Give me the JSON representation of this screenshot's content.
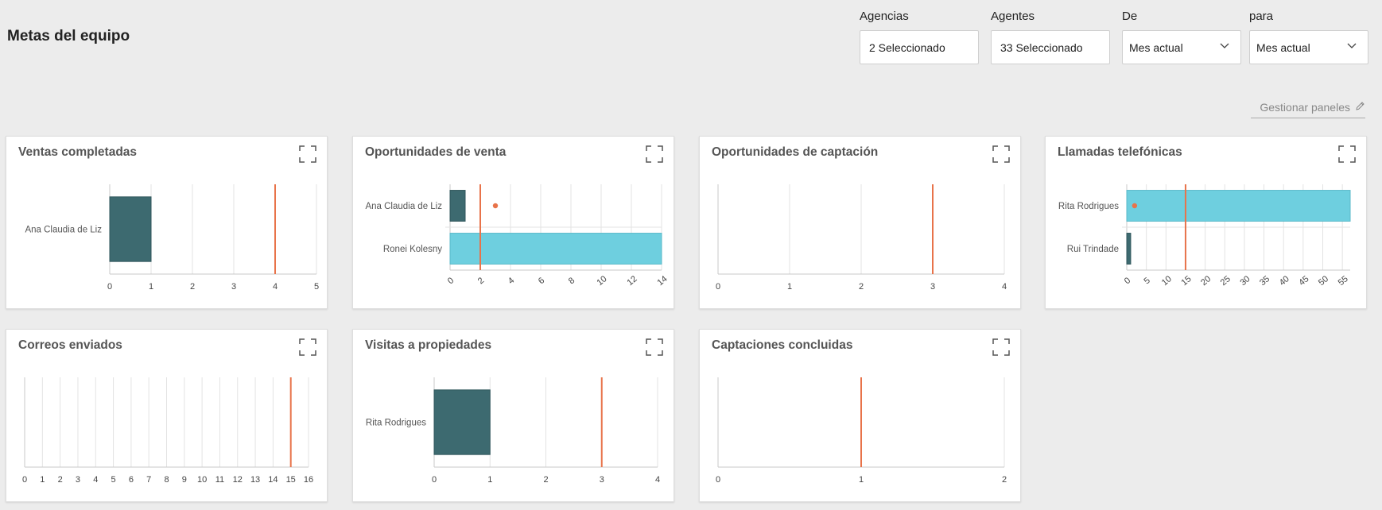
{
  "header": {
    "title": "Metas del equipo",
    "filters": [
      {
        "label": "Agencias",
        "value": "2 Seleccionado",
        "type": "multiselect"
      },
      {
        "label": "Agentes",
        "value": "33 Seleccionado",
        "type": "multiselect"
      },
      {
        "label": "De",
        "value": "Mes actual",
        "type": "select"
      },
      {
        "label": "para",
        "value": "Mes actual",
        "type": "select"
      }
    ],
    "manage_label": "Gestionar paneles"
  },
  "colors": {
    "bar_dark": "#3d6a70",
    "bar_light": "#6ecfdf",
    "target_line": "#e8734a",
    "grid": "#e3e3e3",
    "axis": "#c8c8c8"
  },
  "chart_data": [
    {
      "title": "Ventas completadas",
      "type": "bar",
      "orientation": "horizontal",
      "categories": [
        "Ana Claudia de Liz"
      ],
      "values": [
        1
      ],
      "colors": [
        "dark"
      ],
      "target": 4,
      "xlim": [
        0,
        5
      ],
      "xticks": [
        0,
        1,
        2,
        3,
        4,
        5
      ],
      "grid": true
    },
    {
      "title": "Oportunidades de venta",
      "type": "bar",
      "orientation": "horizontal",
      "categories": [
        "Ana Claudia de Liz",
        "Ronei Kolesny"
      ],
      "values": [
        1,
        14
      ],
      "colors": [
        "dark",
        "light"
      ],
      "target": 2,
      "markers": [
        3,
        null
      ],
      "xlim": [
        0,
        14
      ],
      "xticks": [
        0,
        2,
        4,
        6,
        8,
        10,
        12,
        14
      ],
      "rotate_ticks": true,
      "grid": true
    },
    {
      "title": "Oportunidades de captación",
      "type": "bar",
      "orientation": "horizontal",
      "categories": [],
      "values": [],
      "colors": [],
      "target": 3,
      "xlim": [
        0,
        4
      ],
      "xticks": [
        0,
        1,
        2,
        3,
        4
      ],
      "grid": true
    },
    {
      "title": "Llamadas telefónicas",
      "type": "bar",
      "orientation": "horizontal",
      "categories": [
        "Rita Rodrigues",
        "Rui Trindade"
      ],
      "values": [
        57,
        1
      ],
      "colors": [
        "light",
        "dark"
      ],
      "target": 15,
      "markers": [
        2,
        null
      ],
      "xlim": [
        0,
        57
      ],
      "xticks": [
        0,
        5,
        10,
        15,
        20,
        25,
        30,
        35,
        40,
        45,
        50,
        55
      ],
      "rotate_ticks": true,
      "grid": true
    },
    {
      "title": "Correos enviados",
      "type": "bar",
      "orientation": "horizontal",
      "categories": [],
      "values": [],
      "colors": [],
      "target": 15,
      "xlim": [
        0,
        16
      ],
      "xticks": [
        0,
        1,
        2,
        3,
        4,
        5,
        6,
        7,
        8,
        9,
        10,
        11,
        12,
        13,
        14,
        15,
        16
      ],
      "grid": true
    },
    {
      "title": "Visitas a propiedades",
      "type": "bar",
      "orientation": "horizontal",
      "categories": [
        "Rita Rodrigues"
      ],
      "values": [
        1
      ],
      "colors": [
        "dark"
      ],
      "target": 3,
      "xlim": [
        0,
        4
      ],
      "xticks": [
        0,
        1,
        2,
        3,
        4
      ],
      "grid": true
    },
    {
      "title": "Captaciones concluidas",
      "type": "bar",
      "orientation": "horizontal",
      "categories": [],
      "values": [],
      "colors": [],
      "target": 1,
      "xlim": [
        0,
        2
      ],
      "xticks": [
        0,
        1,
        2
      ],
      "grid": true
    }
  ]
}
